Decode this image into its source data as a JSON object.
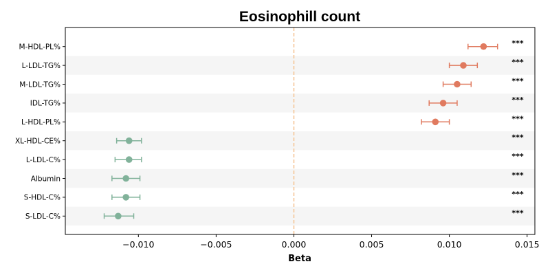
{
  "chart_data": {
    "type": "scatter",
    "subtype": "forest-plot",
    "title": "Eosinophill count",
    "xlabel": "Beta",
    "ylabel": "",
    "xlim": [
      -0.0147,
      0.0155
    ],
    "xticks": [
      -0.01,
      -0.005,
      0.0,
      0.005,
      0.01,
      0.015
    ],
    "xtick_labels": [
      "−0.010",
      "−0.005",
      "0.000",
      "0.005",
      "0.010",
      "0.015"
    ],
    "reference_line": {
      "x": 0.0,
      "style": "dashed",
      "color": "#f5c28f"
    },
    "grid": false,
    "row_shading": "alternating",
    "colors": {
      "positive": "#e07a5f",
      "negative": "#81b29a",
      "shade": "#f5f5f5"
    },
    "rows": [
      {
        "label": "M-HDL-PL%",
        "beta": 0.0122,
        "lo": 0.0112,
        "hi": 0.0131,
        "sig": "***"
      },
      {
        "label": "L-LDL-TG%",
        "beta": 0.0109,
        "lo": 0.01,
        "hi": 0.0118,
        "sig": "***"
      },
      {
        "label": "M-LDL-TG%",
        "beta": 0.0105,
        "lo": 0.0096,
        "hi": 0.0114,
        "sig": "***"
      },
      {
        "label": "IDL-TG%",
        "beta": 0.0096,
        "lo": 0.0087,
        "hi": 0.0105,
        "sig": "***"
      },
      {
        "label": "L-HDL-PL%",
        "beta": 0.0091,
        "lo": 0.0082,
        "hi": 0.01,
        "sig": "***"
      },
      {
        "label": "XL-HDL-CE%",
        "beta": -0.0106,
        "lo": -0.0114,
        "hi": -0.0098,
        "sig": "***"
      },
      {
        "label": "L-LDL-C%",
        "beta": -0.0106,
        "lo": -0.0115,
        "hi": -0.0098,
        "sig": "***"
      },
      {
        "label": "Albumin",
        "beta": -0.0108,
        "lo": -0.0117,
        "hi": -0.0099,
        "sig": "***"
      },
      {
        "label": "S-HDL-C%",
        "beta": -0.0108,
        "lo": -0.0117,
        "hi": -0.0099,
        "sig": "***"
      },
      {
        "label": "S-LDL-C%",
        "beta": -0.0113,
        "lo": -0.0122,
        "hi": -0.0103,
        "sig": "***"
      }
    ]
  }
}
